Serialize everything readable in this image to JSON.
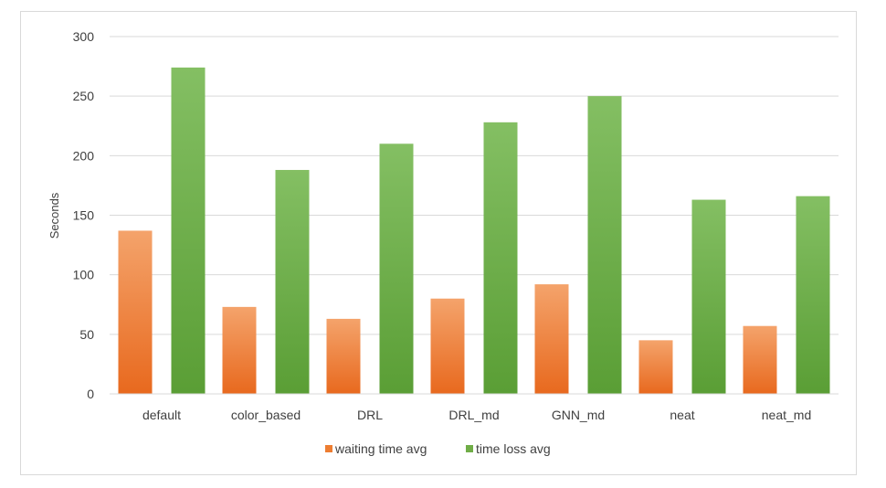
{
  "chart_data": {
    "type": "bar",
    "title": "",
    "xlabel": "",
    "ylabel": "Seconds",
    "ylim": [
      0,
      300
    ],
    "yticks": [
      0,
      50,
      100,
      150,
      200,
      250,
      300
    ],
    "grid": true,
    "legend_position": "bottom",
    "categories": [
      "default",
      "color_based",
      "DRL",
      "DRL_md",
      "GNN_md",
      "neat",
      "neat_md"
    ],
    "series": [
      {
        "name": "waiting time avg",
        "color": "#ed7d31",
        "values": [
          137,
          73,
          63,
          80,
          92,
          45,
          57
        ]
      },
      {
        "name": "time loss avg",
        "color": "#70ad47",
        "values": [
          274,
          188,
          210,
          228,
          250,
          163,
          166
        ]
      }
    ]
  }
}
